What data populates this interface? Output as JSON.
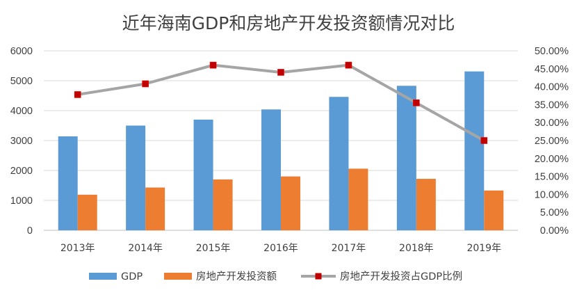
{
  "chart_data": {
    "type": "bar",
    "title": "近年海南GDP和房地产开发投资额情况对比",
    "categories": [
      "2013年",
      "2014年",
      "2015年",
      "2016年",
      "2017年",
      "2018年",
      "2019年"
    ],
    "series": [
      {
        "name": "GDP",
        "kind": "bar",
        "axis": "left",
        "color": "#5B9BD5",
        "values": [
          3140,
          3500,
          3700,
          4040,
          4460,
          4830,
          5310
        ]
      },
      {
        "name": "房地产开发投资额",
        "kind": "bar",
        "axis": "left",
        "color": "#ED7D31",
        "values": [
          1190,
          1430,
          1700,
          1800,
          2060,
          1720,
          1330
        ]
      },
      {
        "name": "房地产开发投资占GDP比例",
        "kind": "line",
        "axis": "right",
        "color": "#A5A5A5",
        "marker_color": "#C00000",
        "values": [
          0.378,
          0.408,
          0.46,
          0.44,
          0.46,
          0.355,
          0.25
        ]
      }
    ],
    "left_axis": {
      "ylim": [
        0,
        6000
      ],
      "ticks": [
        0,
        1000,
        2000,
        3000,
        4000,
        5000,
        6000
      ],
      "tick_labels": [
        "0",
        "1000",
        "2000",
        "3000",
        "4000",
        "5000",
        "6000"
      ]
    },
    "right_axis": {
      "ylim": [
        0,
        0.5
      ],
      "ticks": [
        0,
        0.05,
        0.1,
        0.15,
        0.2,
        0.25,
        0.3,
        0.35,
        0.4,
        0.45,
        0.5
      ],
      "tick_labels": [
        "0.00%",
        "5.00%",
        "10.00%",
        "15.00%",
        "20.00%",
        "25.00%",
        "30.00%",
        "35.00%",
        "40.00%",
        "45.00%",
        "50.00%"
      ]
    },
    "grid": true,
    "legend_position": "bottom"
  }
}
